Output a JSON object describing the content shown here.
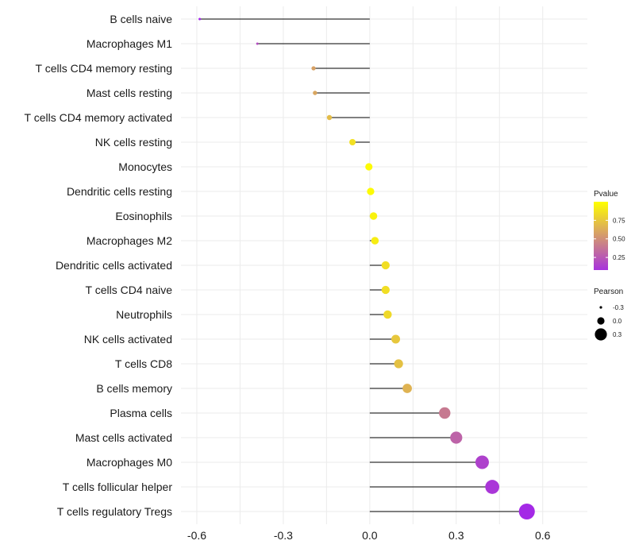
{
  "chart_data": {
    "type": "lollipop",
    "title": "",
    "xlabel": "",
    "ylabel": "",
    "xlim": [
      -0.655,
      0.755
    ],
    "xticks": [
      -0.6,
      -0.3,
      0.0,
      0.3,
      0.6
    ],
    "xtick_labels": [
      "-0.6",
      "-0.3",
      "0.0",
      "0.3",
      "0.6"
    ],
    "minor_gridlines": [
      -0.45,
      -0.15,
      0.15,
      0.45
    ],
    "baseline": 0,
    "categories": [
      "B cells naive",
      "Macrophages M1",
      "T cells CD4 memory resting",
      "Mast cells resting",
      "T cells CD4 memory activated",
      "NK cells resting",
      "Monocytes",
      "Dendritic cells resting",
      "Eosinophils",
      "Macrophages M2",
      "Dendritic cells activated",
      "T cells CD4 naive",
      "Neutrophils",
      "NK cells activated",
      "T cells CD8",
      "B cells memory",
      "Plasma cells",
      "Mast cells activated",
      "Macrophages M0",
      "T cells follicular helper",
      "T cells regulatory  Tregs"
    ],
    "values": [
      -0.59,
      -0.39,
      -0.195,
      -0.19,
      -0.14,
      -0.06,
      -0.003,
      0.003,
      0.013,
      0.018,
      0.055,
      0.055,
      0.062,
      0.09,
      0.1,
      0.13,
      0.26,
      0.3,
      0.39,
      0.425,
      0.545
    ],
    "pvalues": [
      0.02,
      0.2,
      0.58,
      0.6,
      0.7,
      0.86,
      0.98,
      0.98,
      0.94,
      0.92,
      0.85,
      0.85,
      0.83,
      0.75,
      0.72,
      0.66,
      0.4,
      0.3,
      0.15,
      0.1,
      0.04
    ],
    "legend": {
      "position": "right",
      "color": {
        "title": "Pvalue",
        "breaks": [
          0.25,
          0.5,
          0.75
        ],
        "labels": [
          "0.25",
          "0.50",
          "0.75"
        ],
        "range": [
          0.0,
          1.0
        ],
        "low_color": "#A020F0",
        "high_color": "#FFFF00"
      },
      "size": {
        "title": "Pearson",
        "breaks": [
          -0.3,
          0.0,
          0.3
        ],
        "labels": [
          "-0.3",
          "0.0",
          "0.3"
        ]
      }
    }
  }
}
